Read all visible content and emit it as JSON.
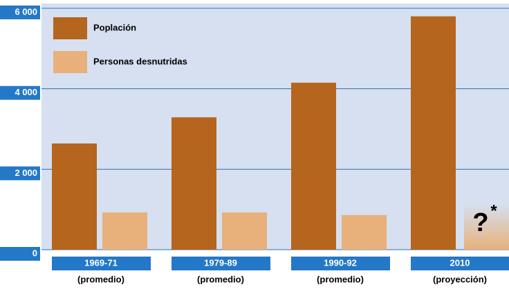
{
  "chart_data": {
    "type": "bar",
    "categories": [
      "1969-71",
      "1979-89",
      "1990-92",
      "2010"
    ],
    "category_notes": [
      "(promedio)",
      "(promedio)",
      "(promedio)",
      "(proyección)"
    ],
    "series": [
      {
        "name": "Poplación",
        "color": "#b5651d",
        "values": [
          2640,
          3290,
          4150,
          5800
        ]
      },
      {
        "name": "Personas desnutridas",
        "color": "#e8b07a",
        "values": [
          925,
          925,
          860,
          null
        ]
      }
    ],
    "annotations": [
      "?",
      "*"
    ],
    "ylim": [
      0,
      6000
    ],
    "yticks": [
      {
        "value": 0,
        "label": "0"
      },
      {
        "value": 2000,
        "label": "2 000"
      },
      {
        "value": 4000,
        "label": "4 000"
      },
      {
        "value": 6000,
        "label": "6 000"
      }
    ],
    "grid": true
  }
}
